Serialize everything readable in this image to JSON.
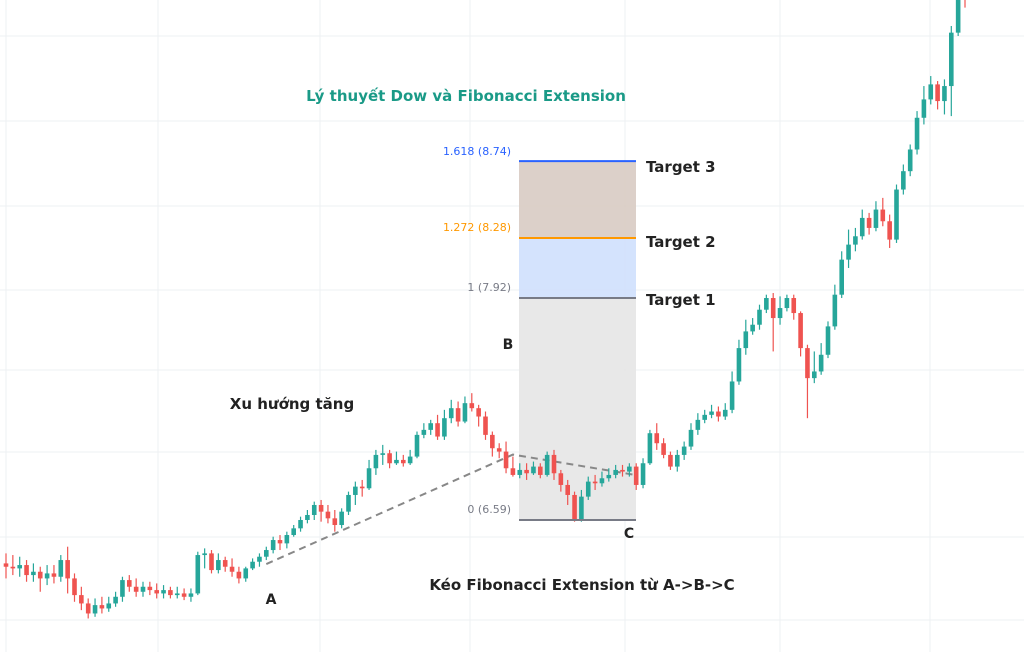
{
  "chart_data": {
    "type": "candlestick",
    "title": "Lý thuyết Dow và Fibonacci Extension",
    "colors": {
      "title": "#1a9a87",
      "up": "#26a69a",
      "down": "#ef5350",
      "grid": "#eef0f3",
      "level_1618": "#2962ff",
      "level_1272": "#ff9800",
      "level_1": "#787b86",
      "level_0": "#787b86",
      "zone_1618_1272": "#d8cbc3",
      "zone_1272_1": "#cfe0fd",
      "zone_1_0": "#e6e6e6",
      "dashed": "#888888"
    },
    "fib_levels": [
      {
        "label": "1.618 (8.74)",
        "ratio": 1.618,
        "price": 8.74,
        "target": "Target 3"
      },
      {
        "label": "1.272 (8.28)",
        "ratio": 1.272,
        "price": 8.28,
        "target": "Target 2"
      },
      {
        "label": "1 (7.92)",
        "ratio": 1,
        "price": 7.92,
        "target": "Target 1"
      },
      {
        "label": "0 (6.59)",
        "ratio": 0,
        "price": 6.59,
        "target": ""
      }
    ],
    "points": {
      "A": "A",
      "B": "B",
      "C": "C"
    },
    "annotations": {
      "trend": "Xu hướng tăng",
      "instruction": "Kéo Fibonacci Extension từ A->B->C"
    },
    "candles": [
      [
        6.33,
        6.31,
        6.39,
        6.24
      ],
      [
        6.31,
        6.3,
        6.38,
        6.26
      ],
      [
        6.3,
        6.32,
        6.37,
        6.25
      ],
      [
        6.32,
        6.26,
        6.35,
        6.22
      ],
      [
        6.26,
        6.28,
        6.33,
        6.22
      ],
      [
        6.28,
        6.24,
        6.31,
        6.16
      ],
      [
        6.24,
        6.27,
        6.32,
        6.2
      ],
      [
        6.27,
        6.25,
        6.32,
        6.21
      ],
      [
        6.25,
        6.35,
        6.38,
        6.22
      ],
      [
        6.35,
        6.24,
        6.43,
        6.15
      ],
      [
        6.24,
        6.14,
        6.27,
        6.1
      ],
      [
        6.14,
        6.09,
        6.19,
        6.05
      ],
      [
        6.09,
        6.03,
        6.12,
        6.0
      ],
      [
        6.03,
        6.08,
        6.12,
        6.01
      ],
      [
        6.08,
        6.06,
        6.13,
        6.03
      ],
      [
        6.06,
        6.09,
        6.13,
        6.04
      ],
      [
        6.09,
        6.13,
        6.16,
        6.07
      ],
      [
        6.13,
        6.23,
        6.25,
        6.1
      ],
      [
        6.23,
        6.19,
        6.26,
        6.16
      ],
      [
        6.19,
        6.16,
        6.24,
        6.13
      ],
      [
        6.16,
        6.19,
        6.22,
        6.13
      ],
      [
        6.19,
        6.17,
        6.22,
        6.14
      ],
      [
        6.17,
        6.15,
        6.21,
        6.12
      ],
      [
        6.15,
        6.17,
        6.2,
        6.12
      ],
      [
        6.17,
        6.14,
        6.19,
        6.12
      ],
      [
        6.14,
        6.15,
        6.19,
        6.12
      ],
      [
        6.15,
        6.13,
        6.18,
        6.11
      ],
      [
        6.13,
        6.15,
        6.18,
        6.1
      ],
      [
        6.15,
        6.38,
        6.4,
        6.14
      ],
      [
        6.38,
        6.39,
        6.42,
        6.3
      ],
      [
        6.39,
        6.29,
        6.41,
        6.27
      ],
      [
        6.29,
        6.35,
        6.39,
        6.27
      ],
      [
        6.35,
        6.31,
        6.37,
        6.28
      ],
      [
        6.31,
        6.28,
        6.36,
        6.25
      ],
      [
        6.28,
        6.24,
        6.31,
        6.21
      ],
      [
        6.24,
        6.3,
        6.31,
        6.22
      ],
      [
        6.3,
        6.34,
        6.36,
        6.29
      ],
      [
        6.34,
        6.37,
        6.39,
        6.31
      ],
      [
        6.37,
        6.41,
        6.43,
        6.35
      ],
      [
        6.41,
        6.47,
        6.49,
        6.39
      ],
      [
        6.47,
        6.45,
        6.5,
        6.41
      ],
      [
        6.45,
        6.5,
        6.52,
        6.42
      ],
      [
        6.5,
        6.54,
        6.56,
        6.49
      ],
      [
        6.54,
        6.59,
        6.61,
        6.52
      ],
      [
        6.59,
        6.62,
        6.65,
        6.57
      ],
      [
        6.62,
        6.68,
        6.7,
        6.59
      ],
      [
        6.68,
        6.64,
        6.71,
        6.58
      ],
      [
        6.64,
        6.6,
        6.68,
        6.57
      ],
      [
        6.6,
        6.56,
        6.65,
        6.52
      ],
      [
        6.56,
        6.64,
        6.66,
        6.54
      ],
      [
        6.64,
        6.74,
        6.76,
        6.62
      ],
      [
        6.74,
        6.79,
        6.82,
        6.68
      ],
      [
        6.79,
        6.78,
        6.83,
        6.73
      ],
      [
        6.78,
        6.9,
        6.95,
        6.77
      ],
      [
        6.9,
        6.98,
        7.01,
        6.86
      ],
      [
        6.98,
        6.99,
        7.04,
        6.92
      ],
      [
        6.99,
        6.93,
        7.01,
        6.9
      ],
      [
        6.93,
        6.95,
        7.0,
        6.92
      ],
      [
        6.95,
        6.93,
        6.98,
        6.91
      ],
      [
        6.93,
        6.97,
        7.01,
        6.92
      ],
      [
        6.97,
        7.1,
        7.12,
        6.96
      ],
      [
        7.1,
        7.13,
        7.17,
        7.08
      ],
      [
        7.13,
        7.17,
        7.19,
        7.1
      ],
      [
        7.17,
        7.09,
        7.22,
        7.07
      ],
      [
        7.09,
        7.2,
        7.25,
        7.07
      ],
      [
        7.2,
        7.26,
        7.31,
        7.17
      ],
      [
        7.26,
        7.18,
        7.3,
        7.15
      ],
      [
        7.18,
        7.29,
        7.33,
        7.17
      ],
      [
        7.29,
        7.26,
        7.35,
        7.24
      ],
      [
        7.26,
        7.21,
        7.28,
        7.15
      ],
      [
        7.21,
        7.1,
        7.24,
        7.07
      ],
      [
        7.1,
        7.02,
        7.12,
        6.97
      ],
      [
        7.02,
        7.0,
        7.05,
        6.96
      ],
      [
        7.0,
        6.9,
        7.06,
        6.87
      ],
      [
        6.9,
        6.86,
        6.97,
        6.85
      ],
      [
        6.86,
        6.89,
        6.93,
        6.84
      ],
      [
        6.89,
        6.87,
        6.93,
        6.83
      ],
      [
        6.87,
        6.91,
        6.94,
        6.86
      ],
      [
        6.91,
        6.86,
        6.93,
        6.84
      ],
      [
        6.86,
        6.98,
        7.0,
        6.85
      ],
      [
        6.98,
        6.87,
        7.01,
        6.83
      ],
      [
        6.87,
        6.8,
        6.89,
        6.76
      ],
      [
        6.8,
        6.74,
        6.83,
        6.68
      ],
      [
        6.74,
        6.59,
        6.76,
        6.58
      ],
      [
        6.59,
        6.73,
        6.77,
        6.58
      ],
      [
        6.73,
        6.82,
        6.85,
        6.71
      ],
      [
        6.82,
        6.81,
        6.86,
        6.77
      ],
      [
        6.81,
        6.84,
        6.88,
        6.79
      ],
      [
        6.84,
        6.86,
        6.9,
        6.82
      ],
      [
        6.86,
        6.89,
        6.92,
        6.84
      ],
      [
        6.89,
        6.88,
        6.92,
        6.85
      ],
      [
        6.88,
        6.91,
        6.93,
        6.85
      ],
      [
        6.91,
        6.8,
        6.93,
        6.77
      ],
      [
        6.8,
        6.93,
        6.96,
        6.78
      ],
      [
        6.93,
        7.11,
        7.13,
        6.92
      ],
      [
        7.11,
        7.05,
        7.17,
        7.01
      ],
      [
        7.05,
        6.98,
        7.08,
        6.96
      ],
      [
        6.98,
        6.91,
        7.0,
        6.89
      ],
      [
        6.91,
        6.98,
        7.01,
        6.88
      ],
      [
        6.98,
        7.03,
        7.06,
        6.95
      ],
      [
        7.03,
        7.13,
        7.17,
        7.01
      ],
      [
        7.13,
        7.19,
        7.23,
        7.1
      ],
      [
        7.19,
        7.22,
        7.25,
        7.17
      ],
      [
        7.22,
        7.24,
        7.28,
        7.2
      ],
      [
        7.24,
        7.21,
        7.27,
        7.18
      ],
      [
        7.21,
        7.25,
        7.29,
        7.19
      ],
      [
        7.25,
        7.42,
        7.48,
        7.23
      ],
      [
        7.42,
        7.62,
        7.67,
        7.4
      ],
      [
        7.62,
        7.72,
        7.79,
        7.58
      ],
      [
        7.72,
        7.76,
        7.8,
        7.7
      ],
      [
        7.76,
        7.85,
        7.88,
        7.73
      ],
      [
        7.85,
        7.92,
        7.94,
        7.83
      ],
      [
        7.92,
        7.8,
        7.95,
        7.6
      ],
      [
        7.8,
        7.86,
        7.93,
        7.76
      ],
      [
        7.86,
        7.92,
        7.94,
        7.84
      ],
      [
        7.92,
        7.83,
        7.94,
        7.79
      ],
      [
        7.83,
        7.62,
        7.84,
        7.57
      ],
      [
        7.62,
        7.44,
        7.64,
        7.2
      ],
      [
        7.44,
        7.48,
        7.6,
        7.41
      ],
      [
        7.48,
        7.58,
        7.65,
        7.46
      ],
      [
        7.58,
        7.75,
        7.78,
        7.56
      ],
      [
        7.75,
        7.94,
        8.0,
        7.73
      ],
      [
        7.94,
        8.15,
        8.2,
        7.92
      ],
      [
        8.15,
        8.24,
        8.33,
        8.1
      ],
      [
        8.24,
        8.29,
        8.34,
        8.2
      ],
      [
        8.29,
        8.4,
        8.45,
        8.27
      ],
      [
        8.4,
        8.34,
        8.43,
        8.3
      ],
      [
        8.34,
        8.45,
        8.5,
        8.32
      ],
      [
        8.45,
        8.38,
        8.52,
        8.35
      ],
      [
        8.38,
        8.27,
        8.42,
        8.22
      ],
      [
        8.27,
        8.57,
        8.6,
        8.25
      ],
      [
        8.57,
        8.68,
        8.72,
        8.54
      ],
      [
        8.68,
        8.81,
        8.84,
        8.65
      ],
      [
        8.81,
        9.0,
        9.04,
        8.78
      ],
      [
        9.0,
        9.11,
        9.19,
        8.96
      ],
      [
        9.11,
        9.2,
        9.25,
        9.08
      ],
      [
        9.2,
        9.1,
        9.22,
        9.05
      ],
      [
        9.1,
        9.19,
        9.23,
        9.02
      ],
      [
        9.19,
        9.51,
        9.55,
        9.01
      ],
      [
        9.51,
        9.81,
        9.89,
        9.49
      ],
      [
        9.81,
        9.74,
        9.87,
        9.66
      ]
    ]
  }
}
